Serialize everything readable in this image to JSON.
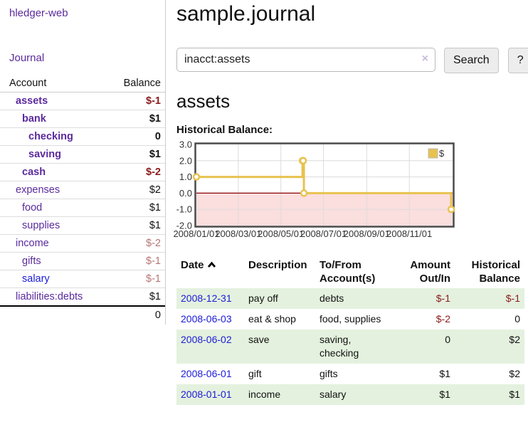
{
  "app": {
    "title": "hledger-web"
  },
  "colors": {
    "link_purple": "#5b2a9d",
    "link_blue": "#1b1bd8",
    "negative_dark": "#8b1a1a",
    "negative_light": "#b87474",
    "row_stripe_green": "#e4f1de",
    "chart_line_gold": "#e8c24f",
    "chart_negative_fill": "#fbdede",
    "chart_zero_line": "#8b0000",
    "chart_grid": "#dcdcdc",
    "chart_border": "#4a4a4a"
  },
  "sidebar": {
    "nav_journal": "Journal",
    "accounts_table": {
      "header_account": "Account",
      "header_balance": "Balance",
      "rows": [
        {
          "account": "assets",
          "level": 1,
          "bold": true,
          "balance": "$-1",
          "balance_style": "neg-dark"
        },
        {
          "account": "bank",
          "level": 2,
          "bold": true,
          "balance": "$1",
          "balance_style": "pos"
        },
        {
          "account": "checking",
          "level": 3,
          "bold": true,
          "balance": "0",
          "balance_style": "pos"
        },
        {
          "account": "saving",
          "level": 3,
          "bold": true,
          "balance": "$1",
          "balance_style": "pos"
        },
        {
          "account": "cash",
          "level": 2,
          "bold": true,
          "balance": "$-2",
          "balance_style": "neg-dark"
        },
        {
          "account": "expenses",
          "level": 1,
          "bold": false,
          "balance": "$2",
          "balance_style": "pos"
        },
        {
          "account": "food",
          "level": 2,
          "bold": false,
          "balance": "$1",
          "balance_style": "pos"
        },
        {
          "account": "supplies",
          "level": 2,
          "bold": false,
          "balance": "$1",
          "balance_style": "pos"
        },
        {
          "account": "income",
          "level": 1,
          "bold": false,
          "balance": "$-2",
          "balance_style": "neg-light"
        },
        {
          "account": "gifts",
          "level": 2,
          "bold": false,
          "balance": "$-1",
          "balance_style": "neg-light"
        },
        {
          "account": "salary",
          "level": 2,
          "bold": false,
          "balance": "$-1",
          "balance_style": "neg-light",
          "link_style": "blue"
        },
        {
          "account": "liabilities:debts",
          "level": 1,
          "bold": false,
          "balance": "$1",
          "balance_style": "pos"
        }
      ],
      "total": "0"
    }
  },
  "header": {
    "title": "sample.journal"
  },
  "search": {
    "value": "inacct:assets",
    "clear_icon": "×",
    "button_label": "Search",
    "help_label": "?"
  },
  "account_page": {
    "heading": "assets",
    "chart_label": "Historical Balance:"
  },
  "chart_data": {
    "type": "line",
    "step": true,
    "title": "Historical Balance",
    "legend": {
      "label": "$",
      "position": "top-right"
    },
    "x_range": [
      "2008-01-01",
      "2009-01-02"
    ],
    "ylim": [
      -2,
      3
    ],
    "yticks": [
      {
        "value": 3,
        "label": "3.0"
      },
      {
        "value": 2,
        "label": "2.0"
      },
      {
        "value": 1,
        "label": "1.0"
      },
      {
        "value": 0,
        "label": "0.0"
      },
      {
        "value": -1,
        "label": "-1.0"
      },
      {
        "value": -2,
        "label": "-2.0"
      }
    ],
    "xticks": [
      {
        "date": "2008-01-01",
        "label": "2008/01/01"
      },
      {
        "date": "2008-03-01",
        "label": "2008/03/01"
      },
      {
        "date": "2008-05-01",
        "label": "2008/05/01"
      },
      {
        "date": "2008-07-01",
        "label": "2008/07/01"
      },
      {
        "date": "2008-09-01",
        "label": "2008/09/01"
      },
      {
        "date": "2008-11-01",
        "label": "2008/11/01"
      }
    ],
    "series": [
      {
        "name": "$",
        "points": [
          [
            "2008-01-01",
            1
          ],
          [
            "2008-06-01",
            2
          ],
          [
            "2008-06-02",
            2
          ],
          [
            "2008-06-03",
            0
          ],
          [
            "2008-12-31",
            -1
          ]
        ]
      }
    ],
    "negative_region_shaded": true,
    "grid": true
  },
  "register_table": {
    "headers": {
      "date": "Date",
      "description": "Description",
      "accounts": "To/From Account(s)",
      "amount": "Amount Out/In",
      "balance": "Historical Balance"
    },
    "sort": {
      "column": "date",
      "direction": "ascending"
    },
    "rows": [
      {
        "date": "2008-12-31",
        "description": "pay off",
        "accounts": "debts",
        "amount": "$-1",
        "amount_negative": true,
        "balance": "$-1",
        "balance_negative": true
      },
      {
        "date": "2008-06-03",
        "description": "eat & shop",
        "accounts": "food, supplies",
        "amount": "$-2",
        "amount_negative": true,
        "balance": "0",
        "balance_negative": false
      },
      {
        "date": "2008-06-02",
        "description": "save",
        "accounts": "saving, checking",
        "amount": "0",
        "amount_negative": false,
        "balance": "$2",
        "balance_negative": false
      },
      {
        "date": "2008-06-01",
        "description": "gift",
        "accounts": "gifts",
        "amount": "$1",
        "amount_negative": false,
        "balance": "$2",
        "balance_negative": false
      },
      {
        "date": "2008-01-01",
        "description": "income",
        "accounts": "salary",
        "amount": "$1",
        "amount_negative": false,
        "balance": "$1",
        "balance_negative": false
      }
    ]
  }
}
